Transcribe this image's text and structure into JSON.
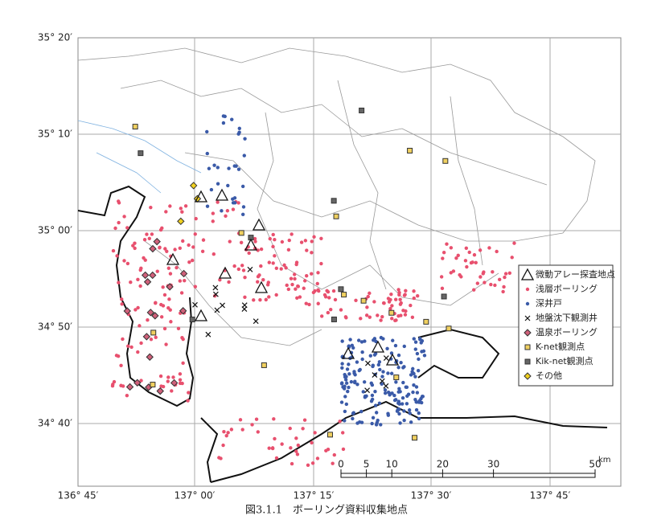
{
  "map": {
    "lat_labels": [
      "35° 20′",
      "35° 10′",
      "35° 00′",
      "34° 50′",
      "34° 40′"
    ],
    "lon_labels": [
      "136° 45′",
      "137° 00′",
      "137° 15′",
      "137° 30′",
      "137° 45′"
    ],
    "legend": [
      "微動アレー探査地点",
      "浅層ボーリング",
      "深井戸",
      "地盤沈下観測井",
      "温泉ボーリング",
      "K-net観測点",
      "Kik-net観測点",
      "その他"
    ],
    "scale": {
      "ticks": [
        0,
        5,
        10,
        20,
        30,
        50
      ],
      "unit": "km"
    },
    "caption": "図3.1.1　ボーリング資料収集地点"
  }
}
